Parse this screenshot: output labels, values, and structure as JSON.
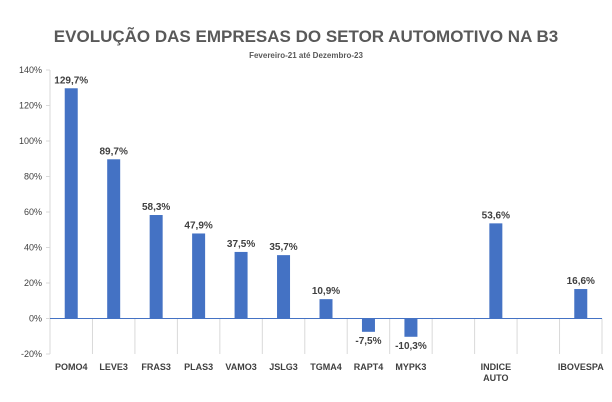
{
  "chart_data": {
    "type": "bar",
    "title": "EVOLUÇÃO DAS EMPRESAS DO SETOR AUTOMOTIVO NA B3",
    "subtitle": "Fevereiro-21 até Dezembro-23",
    "categories": [
      "POMO4",
      "LEVE3",
      "FRAS3",
      "PLAS3",
      "VAMO3",
      "JSLG3",
      "TGMA4",
      "RAPT4",
      "MYPK3",
      "",
      "INDICE AUTO",
      "",
      "IBOVESPA"
    ],
    "values": [
      129.7,
      89.7,
      58.3,
      47.9,
      37.5,
      35.7,
      10.9,
      -7.5,
      -10.3,
      null,
      53.6,
      null,
      16.6
    ],
    "data_labels": [
      "129,7%",
      "89,7%",
      "58,3%",
      "47,9%",
      "37,5%",
      "35,7%",
      "10,9%",
      "-7,5%",
      "-10,3%",
      "",
      "53,6%",
      "",
      "16,6%"
    ],
    "y_ticks": [
      -20,
      0,
      20,
      40,
      60,
      80,
      100,
      120,
      140
    ],
    "y_tick_labels": [
      "-20%",
      "0%",
      "20%",
      "40%",
      "60%",
      "80%",
      "100%",
      "120%",
      "140%"
    ],
    "ylim": [
      -20,
      140
    ],
    "grid": false,
    "category_separators": true,
    "bar_color": "#4472C4",
    "zero_line_color": "#4472C4",
    "axis_color": "#D9D9D9"
  }
}
